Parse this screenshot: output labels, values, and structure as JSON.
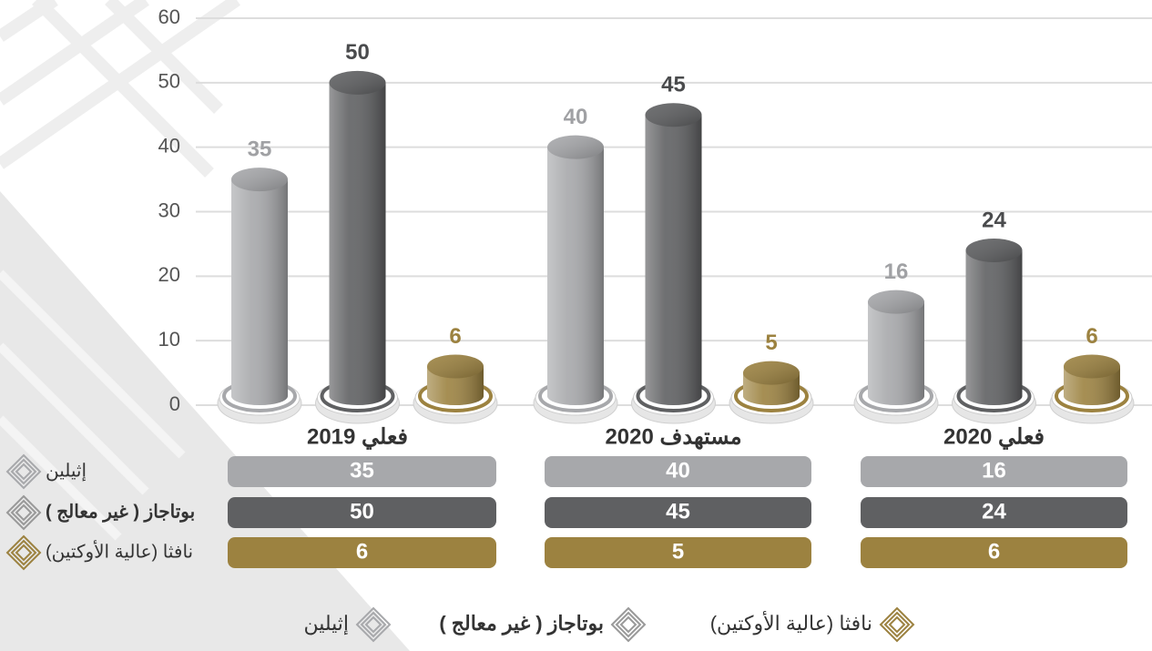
{
  "chart_data": {
    "type": "bar",
    "categories": [
      "فعلي 2019",
      "مستهدف 2020",
      "فعلي 2020"
    ],
    "series": [
      {
        "name": "إثيلين",
        "color": "#a7a8ab",
        "values": [
          35,
          40,
          16
        ]
      },
      {
        "name": "بوتاجاز ( غير معالج )",
        "color": "#5f6062",
        "values": [
          50,
          45,
          24
        ]
      },
      {
        "name": "نافثا (عالية الأوكتين)",
        "color": "#9c8240",
        "values": [
          6,
          5,
          6
        ]
      }
    ],
    "ylim": [
      0,
      60
    ],
    "yticks": [
      0,
      10,
      20,
      30,
      40,
      50,
      60
    ],
    "grid": true
  }
}
